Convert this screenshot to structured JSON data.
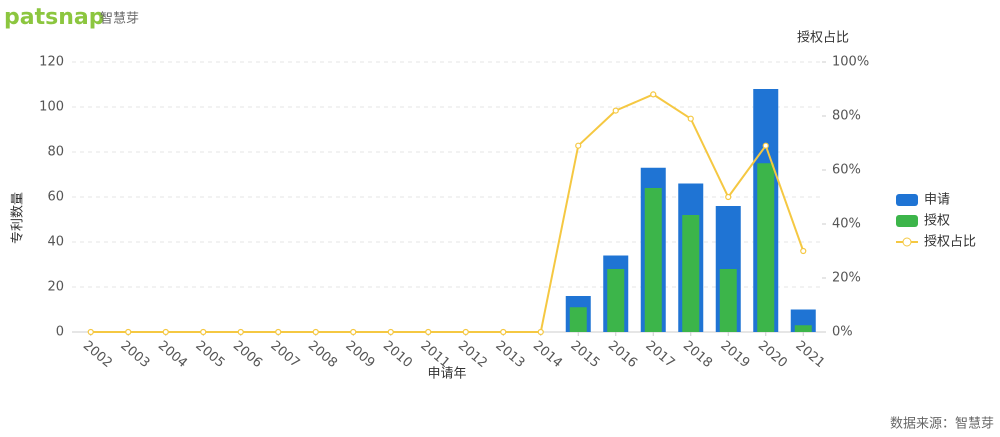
{
  "brand": {
    "name": "patsnap",
    "cn_name": "智慧芽"
  },
  "source": "数据来源：智慧芽",
  "chart_data": {
    "type": "bar",
    "x_label": "申请年",
    "y_label": "专利数量",
    "y2_label": "授权占比",
    "categories": [
      "2002",
      "2003",
      "2004",
      "2005",
      "2006",
      "2007",
      "2008",
      "2009",
      "2010",
      "2011",
      "2012",
      "2013",
      "2014",
      "2015",
      "2016",
      "2017",
      "2018",
      "2019",
      "2020",
      "2021"
    ],
    "series": [
      {
        "name": "申请",
        "color": "#1f74d4",
        "values": [
          0,
          0,
          0,
          0,
          0,
          0,
          0,
          0,
          0,
          0,
          0,
          0,
          0,
          16,
          34,
          73,
          66,
          56,
          108,
          10
        ]
      },
      {
        "name": "授权",
        "color": "#3cb54a",
        "values": [
          0,
          0,
          0,
          0,
          0,
          0,
          0,
          0,
          0,
          0,
          0,
          0,
          0,
          11,
          28,
          64,
          52,
          28,
          75,
          3
        ]
      },
      {
        "name": "授权占比",
        "color": "#f5c842",
        "type": "line",
        "axis": "y2",
        "values": [
          0,
          0,
          0,
          0,
          0,
          0,
          0,
          0,
          0,
          0,
          0,
          0,
          0,
          69,
          82,
          88,
          79,
          50,
          69,
          30
        ]
      }
    ],
    "ylim": [
      0,
      120
    ],
    "yticks": [
      0,
      20,
      40,
      60,
      80,
      100,
      120
    ],
    "y2lim": [
      0,
      100
    ],
    "y2ticks": [
      {
        "value": 0,
        "label": "0%"
      },
      {
        "value": 20,
        "label": "20%"
      },
      {
        "value": 40,
        "label": "40%"
      },
      {
        "value": 60,
        "label": "60%"
      },
      {
        "value": 80,
        "label": "80%"
      },
      {
        "value": 100,
        "label": "100%"
      }
    ],
    "grid": true,
    "legend": "right"
  }
}
